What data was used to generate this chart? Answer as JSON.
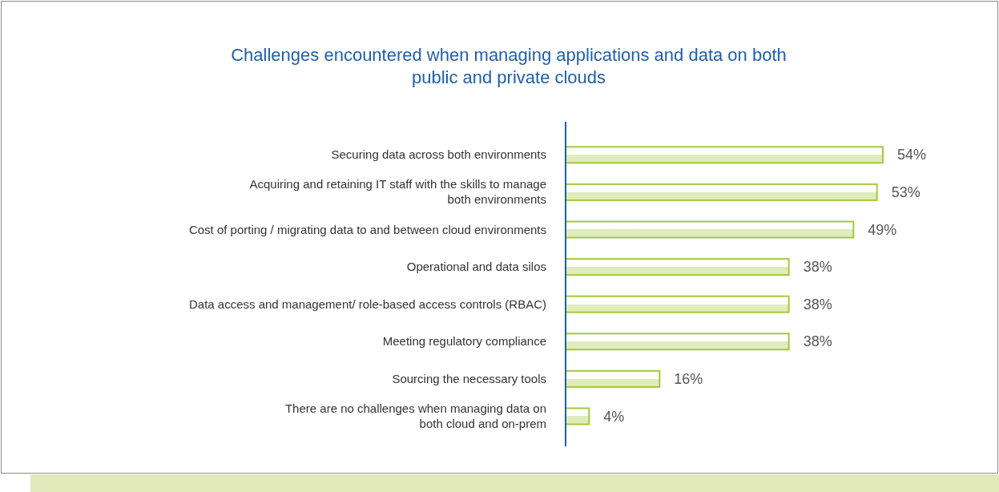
{
  "chart_data": {
    "type": "bar",
    "orientation": "horizontal",
    "relative": false,
    "title": "Challenges encountered when managing applications and data on both\npublic and private clouds",
    "categories": [
      "Securing data across both environments",
      "Acquiring and retaining IT staff with the skills to manage\nboth environments",
      "Cost of porting / migrating data to and between cloud environments",
      "Operational and data silos",
      "Data access and management/ role-based access controls (RBAC)",
      "Meeting regulatory compliance",
      "Sourcing the necessary tools",
      "There are no challenges when managing data on\nboth cloud and on-prem"
    ],
    "values": [
      54,
      53,
      49,
      38,
      38,
      38,
      16,
      4
    ],
    "value_labels": [
      "54%",
      "53%",
      "49%",
      "38%",
      "38%",
      "38%",
      "16%",
      "4%"
    ],
    "color": "#a4c93c"
  }
}
